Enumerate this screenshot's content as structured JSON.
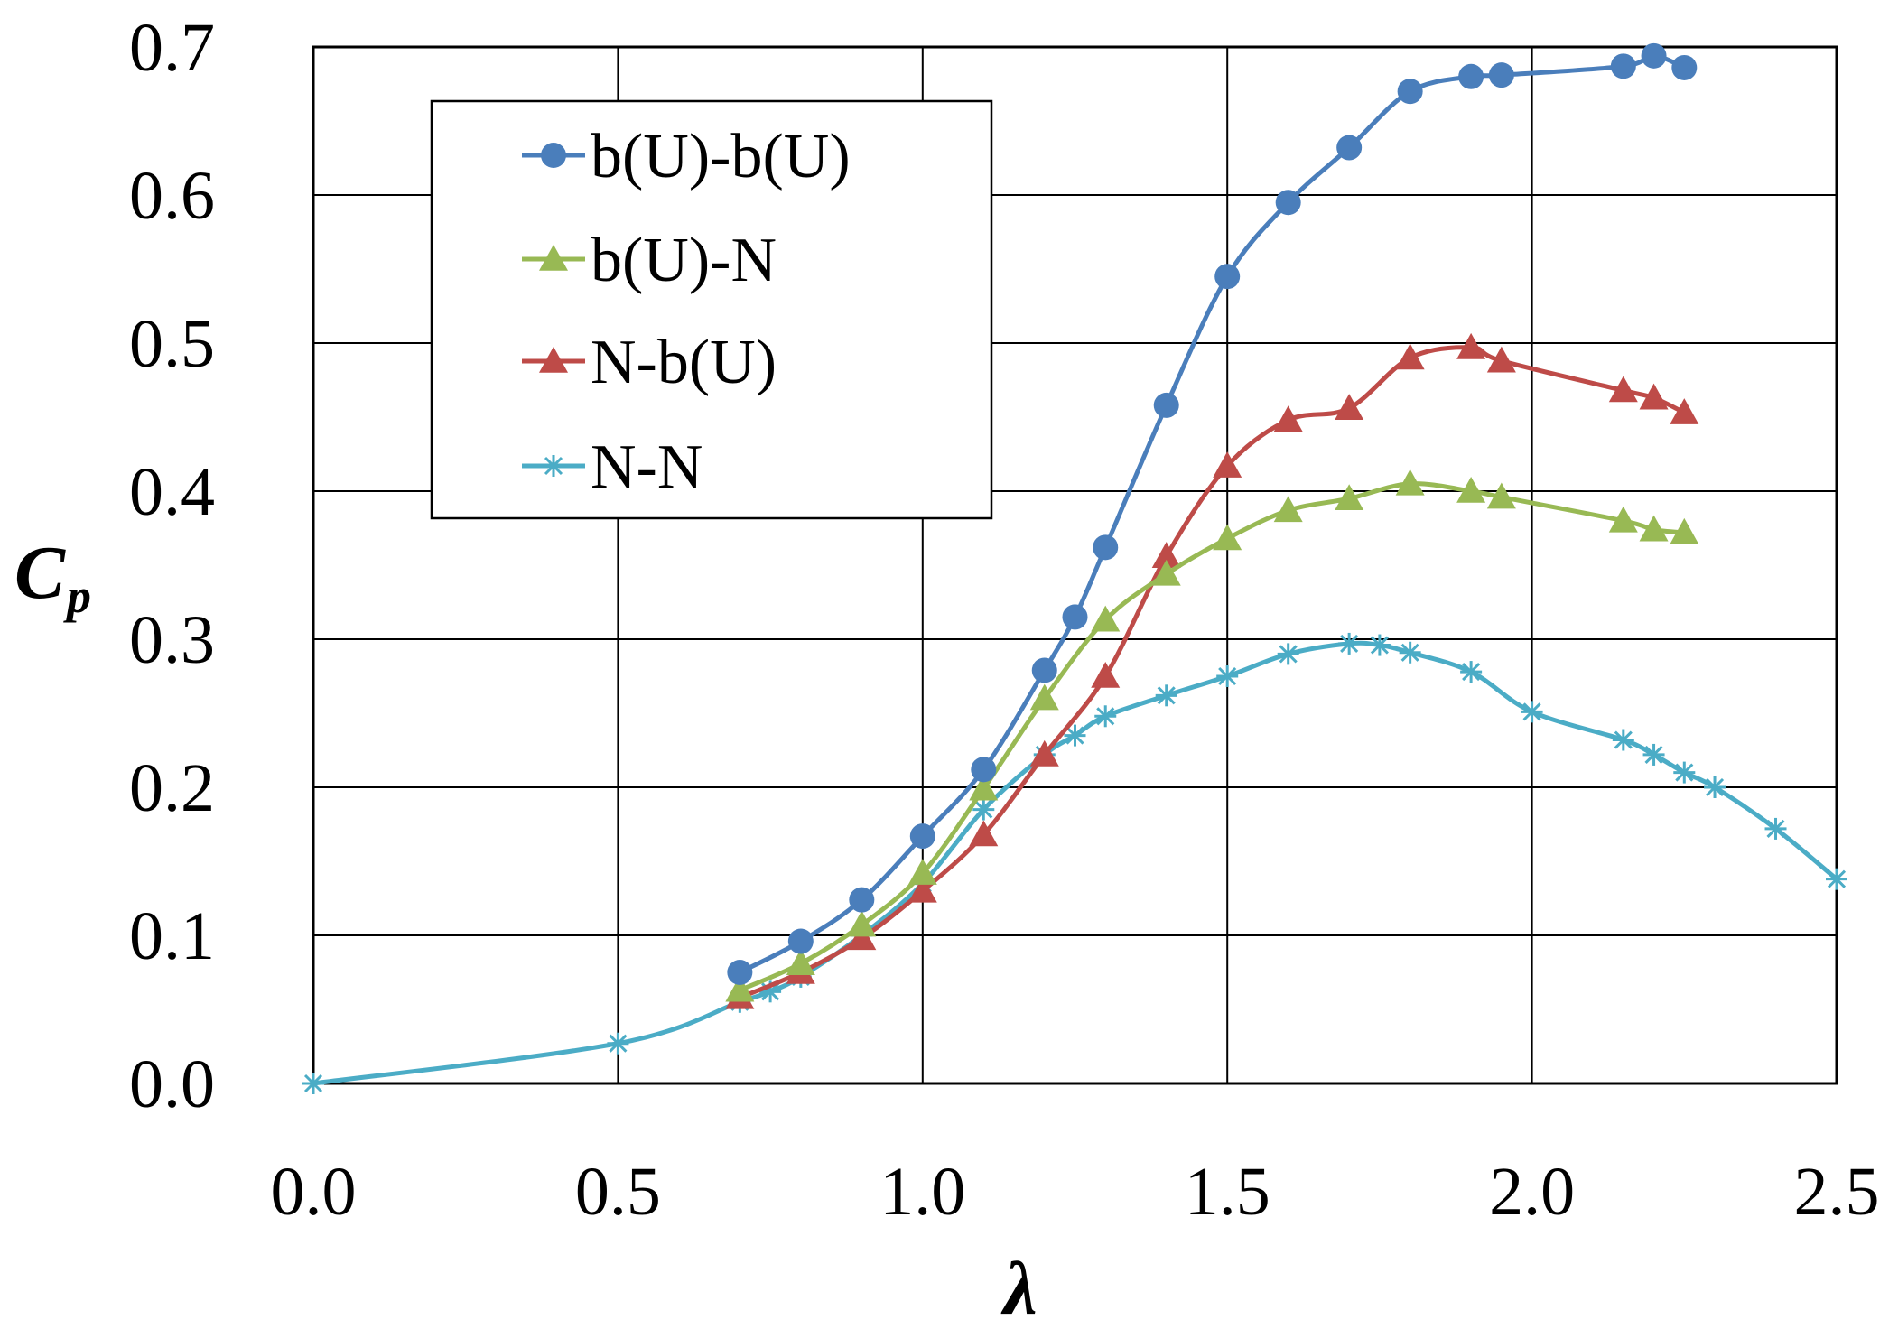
{
  "chart_data": {
    "type": "line",
    "title": "",
    "xlabel": "λ",
    "ylabel_main": "C",
    "ylabel_sub": "p",
    "xlim": [
      0.0,
      2.5
    ],
    "ylim": [
      0.0,
      0.7
    ],
    "xticks": [
      "0.0",
      "0.5",
      "1.0",
      "1.5",
      "2.0",
      "2.5"
    ],
    "yticks": [
      "0.0",
      "0.1",
      "0.2",
      "0.3",
      "0.4",
      "0.5",
      "0.6",
      "0.7"
    ],
    "grid": true,
    "legend_position": "top-left",
    "series": [
      {
        "name": "b(U)-b(U)",
        "color": "#4A7EBB",
        "marker": "circle",
        "x": [
          0.7,
          0.8,
          0.9,
          1.0,
          1.1,
          1.2,
          1.25,
          1.3,
          1.4,
          1.5,
          1.6,
          1.7,
          1.8,
          1.9,
          1.95,
          2.15,
          2.2,
          2.25
        ],
        "y": [
          0.075,
          0.096,
          0.124,
          0.167,
          0.212,
          0.279,
          0.315,
          0.362,
          0.458,
          0.545,
          0.595,
          0.632,
          0.67,
          0.68,
          0.681,
          0.687,
          0.694,
          0.686
        ]
      },
      {
        "name": "b(U)-N",
        "color": "#98B954",
        "marker": "triangle",
        "x": [
          0.7,
          0.8,
          0.9,
          1.0,
          1.1,
          1.2,
          1.3,
          1.4,
          1.5,
          1.6,
          1.7,
          1.8,
          1.9,
          1.95,
          2.15,
          2.2,
          2.25
        ],
        "y": [
          0.063,
          0.081,
          0.107,
          0.142,
          0.199,
          0.26,
          0.313,
          0.344,
          0.368,
          0.387,
          0.395,
          0.405,
          0.4,
          0.396,
          0.38,
          0.374,
          0.372
        ]
      },
      {
        "name": "N-b(U)",
        "color": "#BE4B48",
        "marker": "triangle",
        "x": [
          0.7,
          0.8,
          0.9,
          1.0,
          1.1,
          1.2,
          1.3,
          1.4,
          1.5,
          1.6,
          1.7,
          1.8,
          1.9,
          1.95,
          2.15,
          2.2,
          2.25
        ],
        "y": [
          0.058,
          0.075,
          0.098,
          0.13,
          0.168,
          0.222,
          0.275,
          0.356,
          0.417,
          0.448,
          0.456,
          0.49,
          0.497,
          0.488,
          0.468,
          0.463,
          0.453
        ]
      },
      {
        "name": "N-N",
        "color": "#4BACC6",
        "marker": "star",
        "x": [
          0.0,
          0.5,
          0.7,
          0.75,
          0.8,
          0.9,
          1.0,
          1.1,
          1.2,
          1.25,
          1.3,
          1.4,
          1.5,
          1.6,
          1.7,
          1.75,
          1.8,
          1.9,
          2.0,
          2.15,
          2.2,
          2.25,
          2.3,
          2.4,
          2.5
        ],
        "y": [
          0.0,
          0.027,
          0.055,
          0.062,
          0.072,
          0.1,
          0.135,
          0.185,
          0.222,
          0.235,
          0.248,
          0.262,
          0.275,
          0.29,
          0.297,
          0.296,
          0.291,
          0.278,
          0.251,
          0.232,
          0.222,
          0.21,
          0.2,
          0.172,
          0.138
        ]
      }
    ]
  }
}
